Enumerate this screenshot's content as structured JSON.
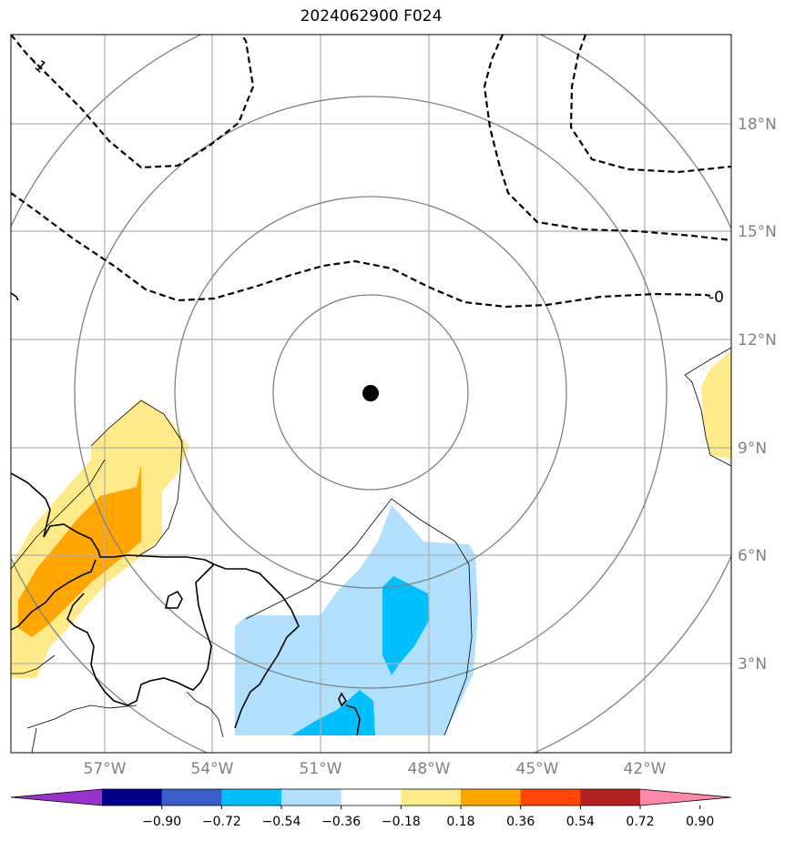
{
  "title": "2024062900 F024",
  "map": {
    "lon_labels": [
      "57°W",
      "54°W",
      "51°W",
      "48°W",
      "45°W",
      "42°W"
    ],
    "lat_labels": [
      "18°N",
      "15°N",
      "12°N",
      "9°N",
      "6°N",
      "3°N"
    ],
    "center_marker": {
      "lon": -49.7,
      "lat": 10.5
    },
    "contour_labels": [
      "-1",
      "-0"
    ],
    "colors": {
      "light_yellow": "#ffea8a",
      "orange": "#ffa500",
      "light_blue": "#b0e0fd",
      "deep_sky_blue": "#00bfff",
      "grid": "#b0b0b0",
      "range_rings": "#808080"
    }
  },
  "colorbar": {
    "labels": [
      "−0.90",
      "−0.72",
      "−0.54",
      "−0.36",
      "−0.18",
      "0.18",
      "0.36",
      "0.54",
      "0.72",
      "0.90"
    ],
    "colors": [
      "#9932cc",
      "#00008b",
      "#3a5fcd",
      "#00bfff",
      "#b0e0fd",
      "#ffffff",
      "#ffea8a",
      "#ffa500",
      "#ff4500",
      "#b22222",
      "#ff88aa"
    ]
  }
}
